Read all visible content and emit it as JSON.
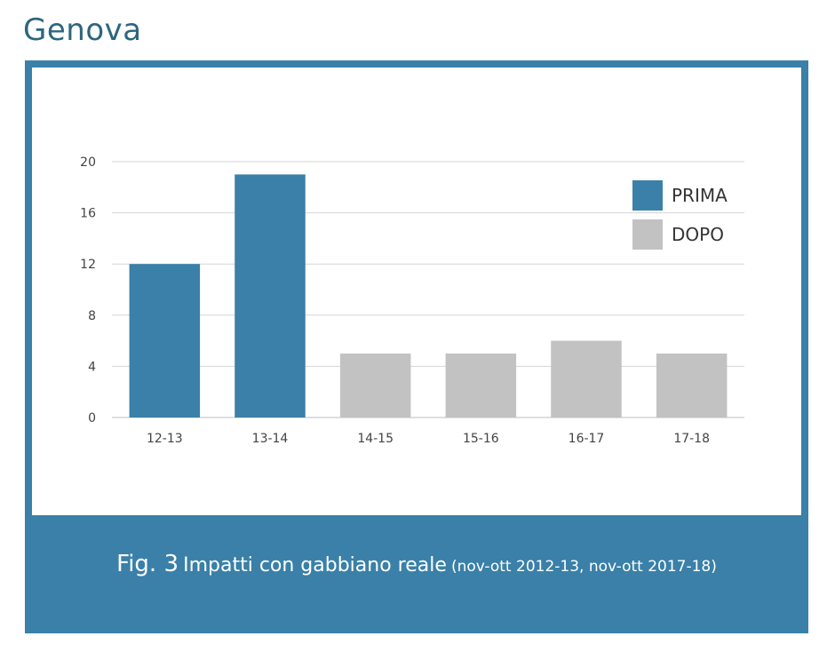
{
  "page": {
    "title": "Genova",
    "caption": {
      "fig": "Fig. 3",
      "main": "Impatti con gabbiano reale",
      "period": "(nov-ott 2012-13, nov-ott 2017-18)"
    }
  },
  "colors": {
    "accent": "#3a80a8",
    "prima": "#3a80a8",
    "dopo": "#c2c2c2",
    "title": "#2d6680"
  },
  "chart_data": {
    "type": "bar",
    "categories": [
      "12-13",
      "13-14",
      "14-15",
      "15-16",
      "16-17",
      "17-18"
    ],
    "values": [
      12,
      19,
      5,
      5,
      6,
      5
    ],
    "groups": [
      "PRIMA",
      "PRIMA",
      "DOPO",
      "DOPO",
      "DOPO",
      "DOPO"
    ],
    "legend": [
      {
        "label": "PRIMA",
        "color": "#3a80a8"
      },
      {
        "label": "DOPO",
        "color": "#c2c2c2"
      }
    ],
    "yticks": [
      0,
      4,
      8,
      12,
      16,
      20
    ],
    "ylim": [
      0,
      20
    ],
    "grid": true,
    "legend_position": "top-right",
    "title": "",
    "xlabel": "",
    "ylabel": ""
  }
}
